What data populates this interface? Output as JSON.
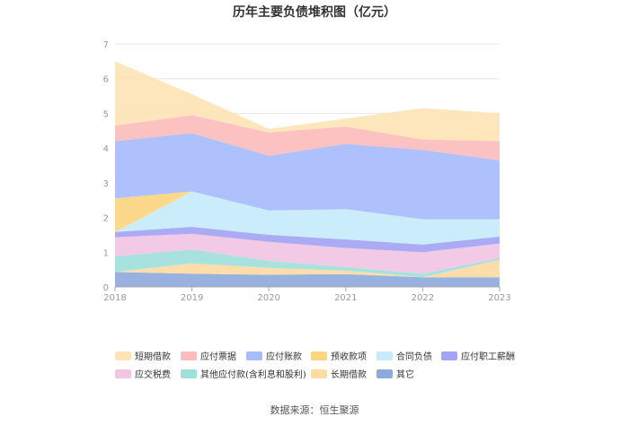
{
  "chart_data": {
    "type": "area",
    "stacked": true,
    "title": "历年主要负债堆积图（亿元）",
    "x": [
      "2018",
      "2019",
      "2020",
      "2021",
      "2022",
      "2023"
    ],
    "ylim": [
      0,
      7
    ],
    "yticks": [
      "0",
      "1",
      "2",
      "3",
      "4",
      "5",
      "6",
      "7"
    ],
    "grid": true,
    "legend_position": "bottom",
    "series": [
      {
        "name": "其它",
        "color": "#8faadc",
        "values": [
          0.43,
          0.38,
          0.35,
          0.37,
          0.28,
          0.28
        ]
      },
      {
        "name": "长期借款",
        "color": "#fddba3",
        "values": [
          0.0,
          0.3,
          0.2,
          0.1,
          0.0,
          0.5
        ]
      },
      {
        "name": "其他应付款(含利息和股利)",
        "color": "#9fe0dc",
        "values": [
          0.45,
          0.4,
          0.2,
          0.1,
          0.1,
          0.05
        ]
      },
      {
        "name": "应交税费",
        "color": "#f2c6e3",
        "values": [
          0.55,
          0.45,
          0.55,
          0.55,
          0.62,
          0.42
        ]
      },
      {
        "name": "应付职工薪酬",
        "color": "#a3a4f3",
        "values": [
          0.15,
          0.2,
          0.2,
          0.25,
          0.22,
          0.2
        ]
      },
      {
        "name": "合同负债",
        "color": "#c7ebfb",
        "values": [
          0.0,
          1.02,
          0.7,
          0.87,
          0.73,
          0.5
        ]
      },
      {
        "name": "预收款项",
        "color": "#fcd680",
        "values": [
          0.97,
          0.0,
          0.0,
          0.0,
          0.0,
          0.0
        ]
      },
      {
        "name": "应付账款",
        "color": "#a8bcfc",
        "values": [
          1.65,
          1.68,
          1.58,
          1.88,
          2.0,
          1.7
        ]
      },
      {
        "name": "应付票据",
        "color": "#fcbcbc",
        "values": [
          0.45,
          0.52,
          0.67,
          0.5,
          0.3,
          0.55
        ]
      },
      {
        "name": "短期借款",
        "color": "#fde3b6",
        "values": [
          1.85,
          0.6,
          0.1,
          0.23,
          0.9,
          0.8
        ]
      }
    ]
  },
  "legend_order": [
    "短期借款",
    "应付票据",
    "应付账款",
    "预收款项",
    "合同负债",
    "应付职工薪酬",
    "应交税费",
    "其他应付款(含利息和股利)",
    "长期借款",
    "其它"
  ],
  "source": "数据来源：恒生聚源"
}
